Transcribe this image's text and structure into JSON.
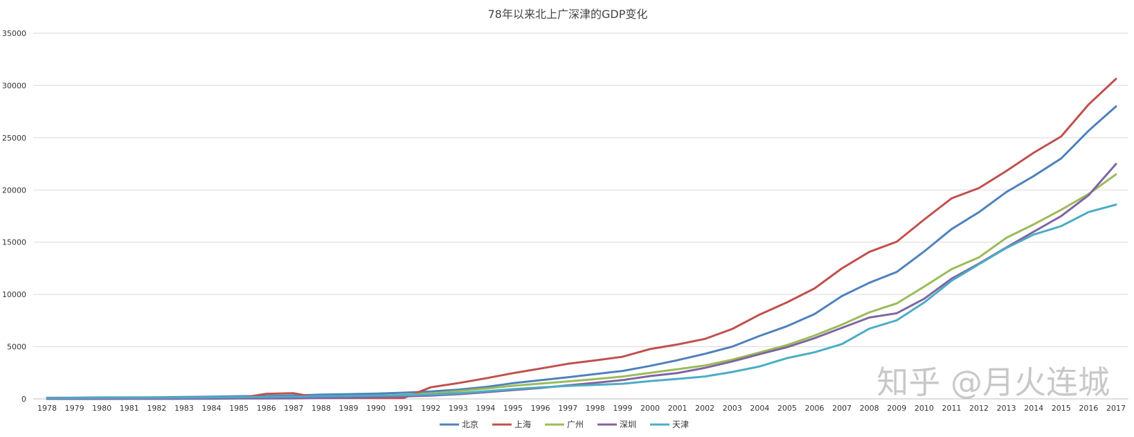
{
  "chart_data": {
    "type": "line",
    "title": "78年以来北上广深津的GDP变化",
    "xlabel": "",
    "ylabel": "",
    "ylim": [
      0,
      35000
    ],
    "yticks": [
      0,
      5000,
      10000,
      15000,
      20000,
      25000,
      30000,
      35000
    ],
    "grid": true,
    "legend_position": "bottom",
    "categories": [
      "1978",
      "1979",
      "1980",
      "1981",
      "1982",
      "1983",
      "1984",
      "1985",
      "1986",
      "1987",
      "1988",
      "1989",
      "1990",
      "1991",
      "1992",
      "1993",
      "1994",
      "1995",
      "1996",
      "1997",
      "1998",
      "1999",
      "2000",
      "2001",
      "2002",
      "2003",
      "2004",
      "2005",
      "2006",
      "2007",
      "2008",
      "2009",
      "2010",
      "2011",
      "2012",
      "2013",
      "2014",
      "2015",
      "2016",
      "2017"
    ],
    "series": [
      {
        "name": "北京",
        "color": "#4f81bd",
        "values": [
          109,
          120,
          139,
          139,
          154,
          183,
          217,
          257,
          285,
          327,
          410,
          456,
          501,
          599,
          709,
          886,
          1145,
          1508,
          1789,
          2075,
          2377,
          2679,
          3162,
          3708,
          4315,
          5007,
          6033,
          6970,
          8118,
          9847,
          11115,
          12153,
          14114,
          16252,
          17879,
          19801,
          21331,
          23015,
          25669,
          28000
        ]
      },
      {
        "name": "上海",
        "color": "#c0504d",
        "values": [
          80,
          80,
          80,
          80,
          80,
          80,
          80,
          80,
          490,
          545,
          80,
          80,
          80,
          80,
          1114,
          1512,
          1972,
          2463,
          2903,
          3360,
          3688,
          4035,
          4771,
          5210,
          5741,
          6694,
          8073,
          9248,
          10572,
          12494,
          14070,
          15046,
          17166,
          19196,
          20182,
          21818,
          23568,
          25123,
          28179,
          30633
        ]
      },
      {
        "name": "广州",
        "color": "#9bbb59",
        "values": [
          43,
          48,
          57,
          62,
          68,
          76,
          92,
          112,
          139,
          173,
          240,
          288,
          319,
          387,
          510,
          745,
          985,
          1259,
          1468,
          1678,
          1893,
          2139,
          2492,
          2841,
          3203,
          3758,
          4450,
          5154,
          6068,
          7109,
          8287,
          9138,
          10748,
          12423,
          13551,
          15420,
          16707,
          18100,
          19611,
          21500
        ]
      },
      {
        "name": "深圳",
        "color": "#8064a2",
        "values": [
          2,
          2,
          3,
          5,
          8,
          13,
          23,
          39,
          42,
          56,
          87,
          116,
          172,
          237,
          317,
          453,
          634,
          843,
          1048,
          1297,
          1535,
          1804,
          2187,
          2482,
          2970,
          3586,
          4282,
          4951,
          5814,
          6802,
          7787,
          8201,
          9582,
          11516,
          12950,
          14500,
          16002,
          17503,
          19493,
          22490
        ]
      },
      {
        "name": "天津",
        "color": "#4bacc6",
        "values": [
          83,
          93,
          103,
          107,
          115,
          123,
          148,
          175,
          195,
          220,
          260,
          283,
          311,
          343,
          411,
          539,
          726,
          932,
          1102,
          1240,
          1336,
          1450,
          1702,
          1919,
          2151,
          2578,
          3111,
          3906,
          4463,
          5253,
          6719,
          7522,
          9224,
          11307,
          12894,
          14442,
          15727,
          16538,
          17885,
          18595
        ]
      }
    ]
  },
  "watermark": "知乎 @月火连城"
}
